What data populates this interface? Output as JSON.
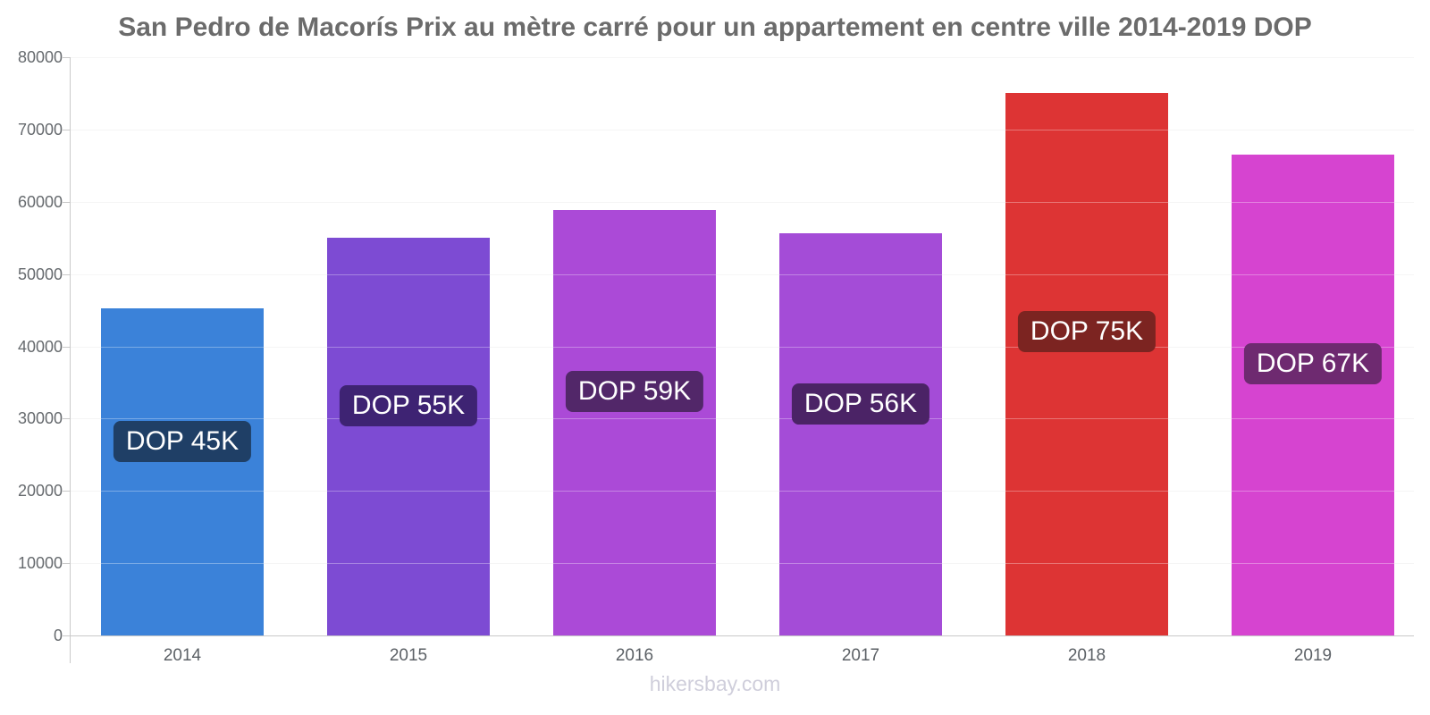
{
  "chart_data": {
    "type": "bar",
    "title": "San Pedro de Macorís Prix au mètre carré pour un appartement en centre ville 2014-2019 DOP",
    "categories": [
      "2014",
      "2015",
      "2016",
      "2017",
      "2018",
      "2019"
    ],
    "values": [
      45200,
      55000,
      58800,
      55700,
      75000,
      66500
    ],
    "value_labels": [
      "DOP 45K",
      "DOP 55K",
      "DOP 59K",
      "DOP 56K",
      "DOP 75K",
      "DOP 67K"
    ],
    "bar_colors": [
      "#3b82d9",
      "#7d4bd3",
      "#ab4ad7",
      "#a44cd7",
      "#dd3434",
      "#d644d0"
    ],
    "pill_colors": [
      "#1f3f66",
      "#3e2373",
      "#522769",
      "#4b2366",
      "#7c2421",
      "#6e2a70"
    ],
    "xlabel": "",
    "ylabel": "",
    "ylim": [
      0,
      80000
    ],
    "yticks": [
      0,
      10000,
      20000,
      30000,
      40000,
      50000,
      60000,
      70000,
      80000
    ],
    "grid": "horizontal",
    "legend": "none"
  },
  "footer": {
    "text": "hikersbay.com"
  },
  "colors": {
    "title": "#6b6b6b",
    "axis_line": "#c9c9c9",
    "gridline": "#f0f0f0",
    "tick_label": "#666a6e",
    "watermark": "#cfcedb"
  }
}
